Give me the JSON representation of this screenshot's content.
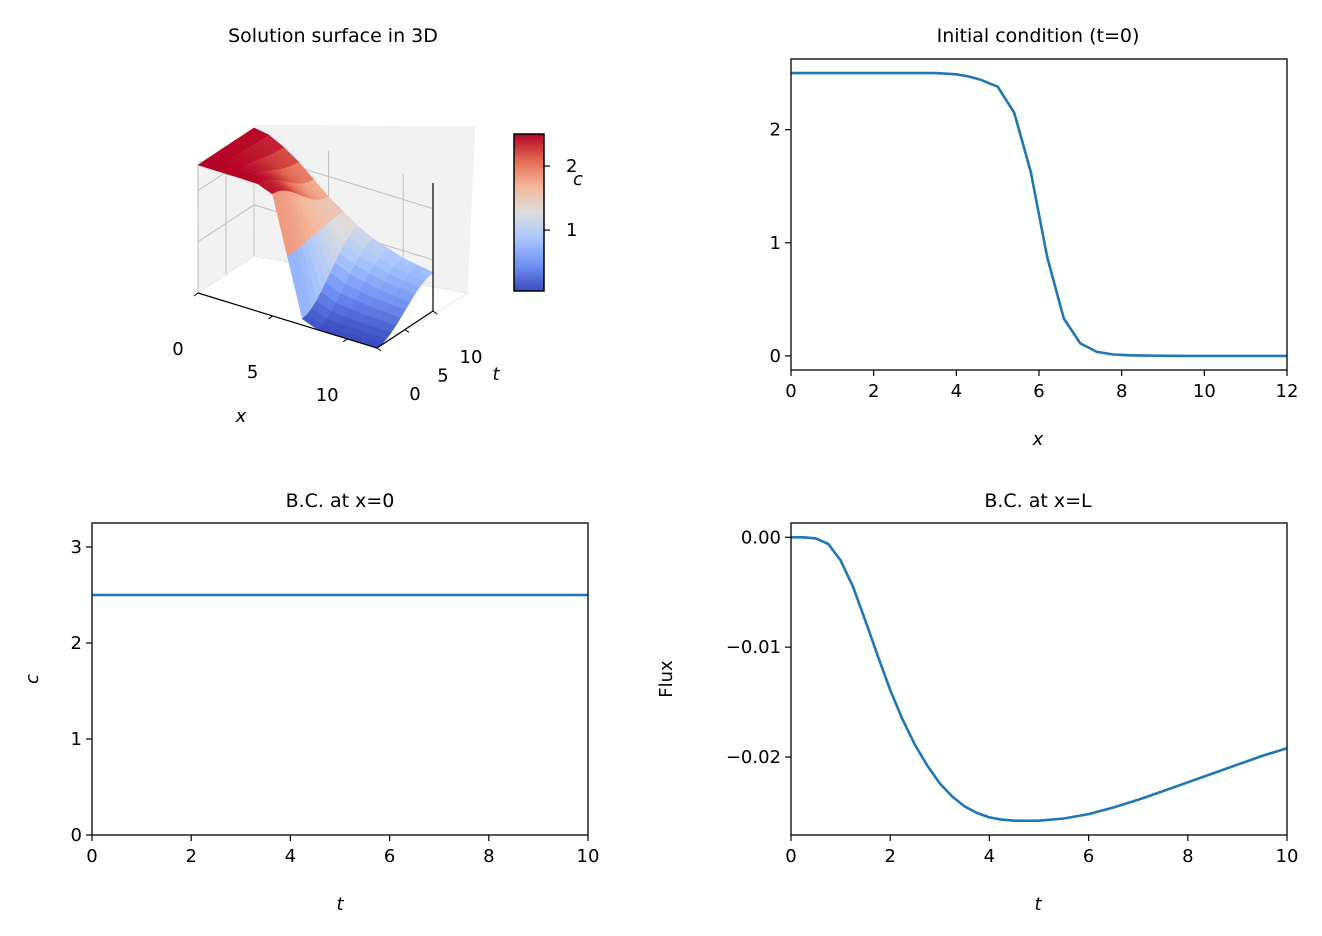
{
  "colors": {
    "line": "#1f77b4",
    "axis": "#000000",
    "pane_left": "#f2f2f2",
    "pane_back": "#f2f2f2",
    "grid3d": "#c0c0c0",
    "cmap": [
      "#3b4cc0",
      "#6f91f2",
      "#a9c6fd",
      "#dddddd",
      "#f5b79a",
      "#e26952",
      "#b40426"
    ]
  },
  "chart_data": [
    {
      "type": "surface",
      "title": "Solution surface in 3D",
      "xlabel": "x",
      "ylabel": "t",
      "zlabel": "c",
      "x_ticks": [
        0,
        5,
        10
      ],
      "y_ticks": [
        0,
        5,
        10
      ],
      "xlim": [
        0,
        12
      ],
      "ylim": [
        0,
        10
      ],
      "zlim": [
        0,
        2.5
      ],
      "colorbar": {
        "ticks": [
          1,
          2
        ],
        "label": "c",
        "range": [
          0.05,
          2.5
        ],
        "cmap": "coolwarm"
      },
      "surface": {
        "x": [
          0,
          1,
          2,
          3,
          4,
          5,
          6,
          7,
          8,
          9,
          10,
          11,
          12
        ],
        "t": [
          0,
          2.5,
          5,
          7.5,
          10
        ],
        "c_at_t0": [
          2.5,
          2.5,
          2.5,
          2.5,
          2.49,
          2.38,
          1.25,
          0.12,
          0.01,
          0.0,
          0.0,
          0.0,
          0.0
        ],
        "c_at_t10": [
          2.5,
          2.45,
          2.3,
          2.1,
          1.85,
          1.6,
          1.4,
          1.2,
          1.05,
          0.95,
          0.85,
          0.8,
          0.75
        ]
      }
    },
    {
      "type": "line",
      "title": "Initial condition (t=0)",
      "xlabel": "x",
      "ylabel": "",
      "xlim": [
        0,
        12
      ],
      "ylim": [
        -0.125,
        2.625
      ],
      "x_ticks": [
        0,
        2,
        4,
        6,
        8,
        10,
        12
      ],
      "y_ticks": [
        0,
        1,
        2
      ],
      "grid": false,
      "series": [
        {
          "x": [
            0,
            0.5,
            1,
            1.5,
            2,
            2.5,
            3,
            3.5,
            4,
            4.3,
            4.6,
            5,
            5.4,
            5.8,
            6.2,
            6.6,
            7,
            7.4,
            7.8,
            8.2,
            8.6,
            9,
            9.5,
            10,
            10.5,
            11,
            11.5,
            12
          ],
          "y": [
            2.5,
            2.5,
            2.5,
            2.5,
            2.5,
            2.5,
            2.5,
            2.5,
            2.49,
            2.47,
            2.44,
            2.38,
            2.15,
            1.63,
            0.87,
            0.33,
            0.11,
            0.035,
            0.012,
            0.005,
            0.002,
            0.001,
            0.0,
            0.0,
            0.0,
            0.0,
            0.0,
            0.0
          ]
        }
      ]
    },
    {
      "type": "line",
      "title": "B.C. at x=0",
      "xlabel": "t",
      "ylabel": "c",
      "xlim": [
        0,
        10
      ],
      "ylim": [
        0,
        3.25
      ],
      "x_ticks": [
        0,
        2,
        4,
        6,
        8,
        10
      ],
      "y_ticks": [
        0,
        1,
        2,
        3
      ],
      "grid": false,
      "series": [
        {
          "x": [
            0,
            10
          ],
          "y": [
            2.5,
            2.5
          ]
        }
      ]
    },
    {
      "type": "line",
      "title": "B.C. at x=L",
      "xlabel": "t",
      "ylabel": "Flux",
      "xlim": [
        0,
        10
      ],
      "ylim": [
        -0.0271,
        0.0013
      ],
      "x_ticks": [
        0,
        2,
        4,
        6,
        8,
        10
      ],
      "y_ticks": [
        0.0,
        -0.01,
        -0.02
      ],
      "y_tick_labels": [
        "0.00",
        "−0.01",
        "−0.02"
      ],
      "grid": false,
      "series": [
        {
          "x": [
            0,
            0.25,
            0.5,
            0.75,
            1,
            1.25,
            1.5,
            1.75,
            2,
            2.25,
            2.5,
            2.75,
            3,
            3.25,
            3.5,
            3.75,
            4,
            4.25,
            4.5,
            4.75,
            5,
            5.5,
            6,
            6.5,
            7,
            7.5,
            8,
            8.5,
            9,
            9.5,
            10
          ],
          "y": [
            0.0,
            0.0,
            -0.0001,
            -0.0006,
            -0.0021,
            -0.0045,
            -0.0076,
            -0.0108,
            -0.0139,
            -0.0166,
            -0.0189,
            -0.0208,
            -0.0224,
            -0.0236,
            -0.0245,
            -0.0251,
            -0.0255,
            -0.0257,
            -0.0258,
            -0.0258,
            -0.0258,
            -0.0256,
            -0.0252,
            -0.0246,
            -0.0239,
            -0.0231,
            -0.0223,
            -0.0215,
            -0.0207,
            -0.0199,
            -0.0192
          ]
        }
      ]
    }
  ]
}
